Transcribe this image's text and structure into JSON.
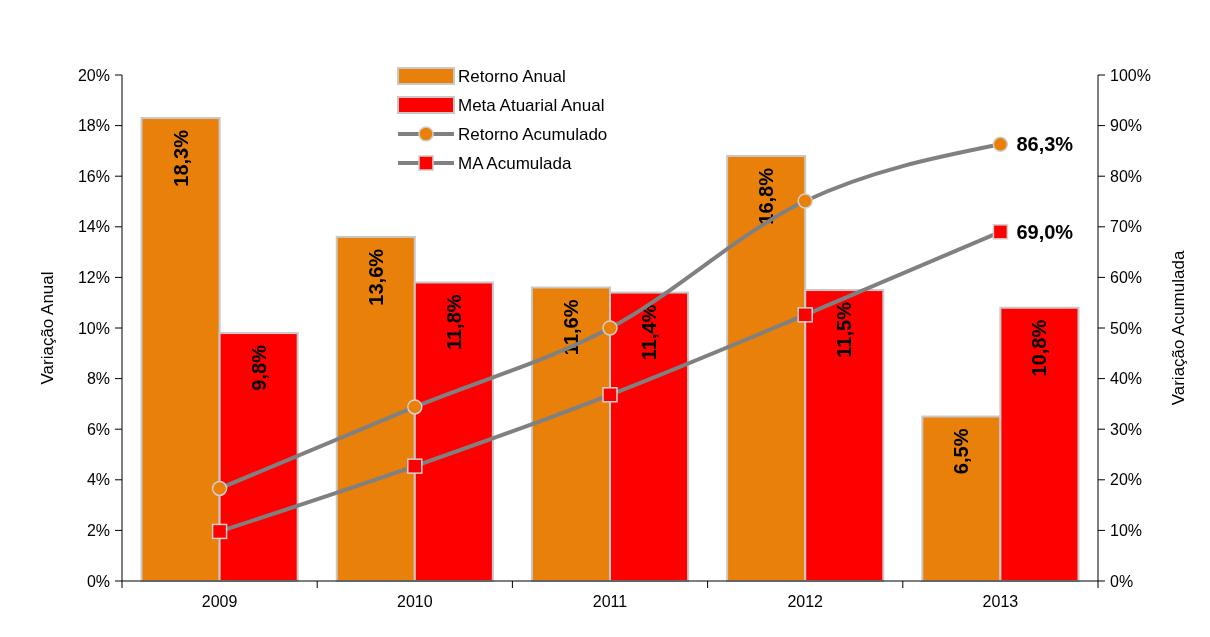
{
  "chart_data": {
    "type": "bar",
    "ylabel": "Variação Anual",
    "y2label": "Variação Acumulada",
    "categories": [
      "2009",
      "2010",
      "2011",
      "2012",
      "2013"
    ],
    "series": [
      {
        "name": "Retorno Anual",
        "color": "#e8800a",
        "values": [
          18.3,
          13.6,
          11.6,
          16.8,
          6.5
        ],
        "value_labels": [
          "18,3%",
          "13,6%",
          "11,6%",
          "16,8%",
          "6,5%"
        ]
      },
      {
        "name": "Meta Atuarial Anual",
        "color": "#ff0000",
        "values": [
          9.8,
          11.8,
          11.4,
          11.5,
          10.8
        ],
        "value_labels": [
          "9,8%",
          "11,8%",
          "11,4%",
          "11,5%",
          "10,8%"
        ]
      },
      {
        "name": "Retorno Acumulado",
        "type": "line",
        "axis": "y2",
        "color": "#e8800a",
        "marker": "circle",
        "values": [
          18.3,
          34.4,
          50.0,
          75.1,
          86.3
        ],
        "value_labels": [
          null,
          null,
          null,
          null,
          "86,3%"
        ]
      },
      {
        "name": "MA Acumulada",
        "type": "line",
        "axis": "y2",
        "color": "#ff0000",
        "marker": "square",
        "values": [
          9.8,
          22.7,
          36.8,
          52.6,
          69.0
        ],
        "value_labels": [
          null,
          null,
          null,
          null,
          "69,0%"
        ]
      }
    ],
    "ylim": [
      0,
      20
    ],
    "yticks": [
      {
        "value": 0,
        "label": "0%"
      },
      {
        "value": 2,
        "label": "2%"
      },
      {
        "value": 4,
        "label": "4%"
      },
      {
        "value": 6,
        "label": "6%"
      },
      {
        "value": 8,
        "label": "8%"
      },
      {
        "value": 10,
        "label": "10%"
      },
      {
        "value": 12,
        "label": "12%"
      },
      {
        "value": 14,
        "label": "14%"
      },
      {
        "value": 16,
        "label": "16%"
      },
      {
        "value": 18,
        "label": "18%"
      },
      {
        "value": 20,
        "label": "20%"
      }
    ],
    "y2lim": [
      0,
      100
    ],
    "y2ticks": [
      {
        "value": 0,
        "label": "0%"
      },
      {
        "value": 10,
        "label": "10%"
      },
      {
        "value": 20,
        "label": "20%"
      },
      {
        "value": 30,
        "label": "30%"
      },
      {
        "value": 40,
        "label": "40%"
      },
      {
        "value": 50,
        "label": "50%"
      },
      {
        "value": 60,
        "label": "60%"
      },
      {
        "value": 70,
        "label": "70%"
      },
      {
        "value": 80,
        "label": "80%"
      },
      {
        "value": 90,
        "label": "90%"
      },
      {
        "value": 100,
        "label": "100%"
      }
    ],
    "legend": "top",
    "grid": false
  }
}
